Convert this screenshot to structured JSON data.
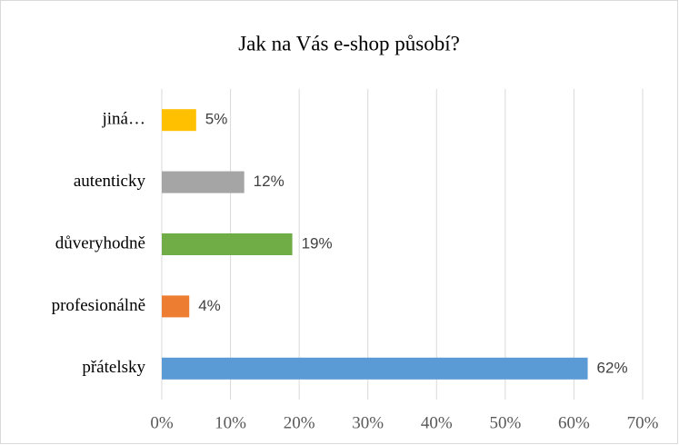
{
  "chart_data": {
    "type": "bar",
    "orientation": "horizontal",
    "title": "Jak na Vás e-shop působí?",
    "categories": [
      "jiná…",
      "autenticky",
      "důveryhodně",
      "profesionálně",
      "přátelsky"
    ],
    "values": [
      5,
      12,
      19,
      4,
      62
    ],
    "value_labels": [
      "5%",
      "12%",
      "19%",
      "4%",
      "62%"
    ],
    "colors": [
      "#ffc000",
      "#a5a5a5",
      "#70ad47",
      "#ed7d31",
      "#5b9bd5"
    ],
    "xlim": [
      0,
      70
    ],
    "xticks": [
      {
        "value": 0,
        "label": "0%"
      },
      {
        "value": 10,
        "label": "10%"
      },
      {
        "value": 20,
        "label": "20%"
      },
      {
        "value": 30,
        "label": "30%"
      },
      {
        "value": 40,
        "label": "40%"
      },
      {
        "value": 50,
        "label": "50%"
      },
      {
        "value": 60,
        "label": "60%"
      },
      {
        "value": 70,
        "label": "70%"
      }
    ],
    "grid": true
  }
}
